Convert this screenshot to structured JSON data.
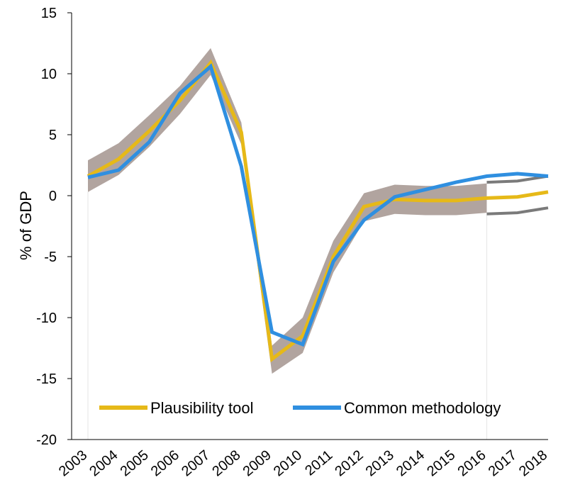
{
  "chart_data": {
    "type": "line",
    "title": "",
    "xlabel": "",
    "ylabel": "% of GDP",
    "ylim": [
      -20,
      15
    ],
    "yticks": [
      15,
      10,
      5,
      0,
      -5,
      -10,
      -15,
      -20
    ],
    "categories": [
      "2003",
      "2004",
      "2005",
      "2006",
      "2007",
      "2008",
      "2009",
      "2010",
      "2011",
      "2012",
      "2013",
      "2014",
      "2015",
      "2016",
      "2017",
      "2018"
    ],
    "series": [
      {
        "name": "Plausibility tool",
        "color": "#E6B918",
        "values": [
          1.6,
          3.0,
          5.3,
          7.8,
          10.9,
          5.2,
          -13.4,
          -11.5,
          -5.0,
          -0.9,
          -0.3,
          -0.4,
          -0.4,
          -0.2,
          -0.1,
          0.3
        ]
      },
      {
        "name": "Common methodology",
        "color": "#2F8FE0",
        "values": [
          1.5,
          2.1,
          4.4,
          8.4,
          10.6,
          2.4,
          -11.2,
          -12.2,
          -5.4,
          -2.0,
          -0.1,
          0.5,
          1.1,
          1.6,
          1.8,
          1.6
        ]
      }
    ],
    "band": {
      "color": "#A89A95",
      "upper": [
        2.9,
        4.3,
        6.6,
        9.0,
        12.1,
        6.0,
        -12.3,
        -10.0,
        -3.7,
        0.2,
        0.9,
        0.8,
        0.8,
        1.0
      ],
      "lower": [
        0.3,
        1.7,
        4.0,
        6.7,
        9.9,
        4.2,
        -14.6,
        -12.9,
        -6.3,
        -2.1,
        -1.5,
        -1.6,
        -1.6,
        -1.4
      ]
    },
    "forecast_bounds": {
      "color": "#7A7A7A",
      "start": "2016",
      "upper": [
        1.1,
        1.2,
        1.6
      ],
      "lower": [
        -1.5,
        -1.4,
        -1.0
      ]
    },
    "legend": {
      "position": "bottom",
      "entries": [
        "Plausibility tool",
        "Common methodology"
      ]
    },
    "grid": false
  }
}
